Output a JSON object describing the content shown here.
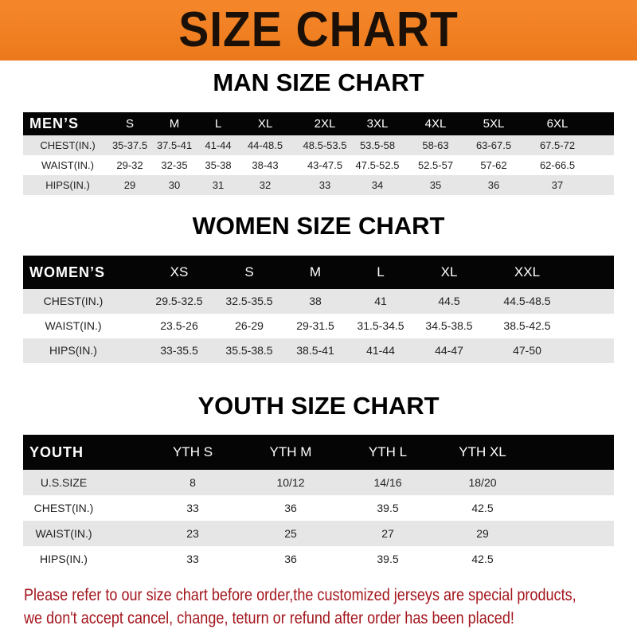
{
  "banner_title": "SIZE CHART",
  "colors": {
    "banner": "#f07f1f",
    "header_row": "#050505",
    "note_text": "#a3161d"
  },
  "men": {
    "title": "MAN SIZE CHART",
    "header": [
      "MEN’S",
      "S",
      "M",
      "L",
      "XL",
      "2XL",
      "3XL",
      "4XL",
      "5XL",
      "6XL"
    ],
    "rows": [
      [
        "CHEST(IN.)",
        "35-37.5",
        "37.5-41",
        "41-44",
        "44-48.5",
        "48.5-53.5",
        "53.5-58",
        "58-63",
        "63-67.5",
        "67.5-72"
      ],
      [
        "WAIST(IN.)",
        "29-32",
        "32-35",
        "35-38",
        "38-43",
        "43-47.5",
        "47.5-52.5",
        "52.5-57",
        "57-62",
        "62-66.5"
      ],
      [
        "HIPS(IN.)",
        "29",
        "30",
        "31",
        "32",
        "33",
        "34",
        "35",
        "36",
        "37"
      ]
    ]
  },
  "women": {
    "title": "WOMEN SIZE CHART",
    "header": [
      "WOMEN’S",
      "XS",
      "S",
      "M",
      "L",
      "XL",
      "XXL"
    ],
    "rows": [
      [
        "CHEST(IN.)",
        "29.5-32.5",
        "32.5-35.5",
        "38",
        "41",
        "44.5",
        "44.5-48.5"
      ],
      [
        "WAIST(IN.)",
        "23.5-26",
        "26-29",
        "29-31.5",
        "31.5-34.5",
        "34.5-38.5",
        "38.5-42.5"
      ],
      [
        "HIPS(IN.)",
        "33-35.5",
        "35.5-38.5",
        "38.5-41",
        "41-44",
        "44-47",
        "47-50"
      ]
    ]
  },
  "youth": {
    "title": "YOUTH SIZE CHART",
    "header": [
      "YOUTH",
      "YTH S",
      "YTH M",
      "YTH L",
      "YTH XL"
    ],
    "rows": [
      [
        "U.S.SIZE",
        "8",
        "10/12",
        "14/16",
        "18/20"
      ],
      [
        "CHEST(IN.)",
        "33",
        "36",
        "39.5",
        "42.5"
      ],
      [
        "WAIST(IN.)",
        "23",
        "25",
        "27",
        "29"
      ],
      [
        "HIPS(IN.)",
        "33",
        "36",
        "39.5",
        "42.5"
      ]
    ]
  },
  "note": {
    "line1": "Please refer to our size chart before order,the customized jerseys are special products,",
    "line2": "we don't accept cancel, change, teturn or refund after order has been placed!"
  }
}
